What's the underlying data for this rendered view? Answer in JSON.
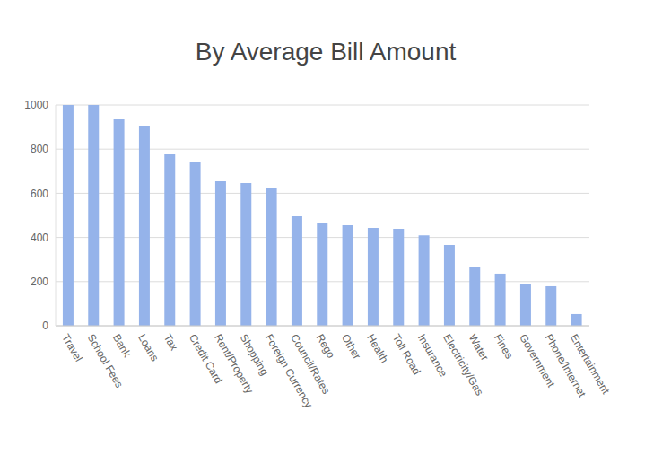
{
  "chart_data": {
    "type": "bar",
    "title": "By Average Bill Amount",
    "categories": [
      "Travel",
      "School Fees",
      "Bank",
      "Loans",
      "Tax",
      "Credit Card",
      "Rent/Property",
      "Shopping",
      "Foreign Currency",
      "Council/Rates",
      "Rego",
      "Other",
      "Health",
      "Toll Road",
      "Insurance",
      "Electricity/Gas",
      "Water",
      "Fines",
      "Government",
      "Phone/Internet",
      "Entertainment"
    ],
    "values": [
      1000,
      1000,
      935,
      906,
      776,
      744,
      654,
      646,
      626,
      496,
      463,
      455,
      443,
      439,
      410,
      366,
      268,
      236,
      191,
      179,
      53
    ],
    "color": "#95b3ea",
    "ylim": [
      0,
      1000
    ],
    "yticks": [
      0,
      200,
      400,
      600,
      800,
      1000
    ],
    "grid": true
  }
}
